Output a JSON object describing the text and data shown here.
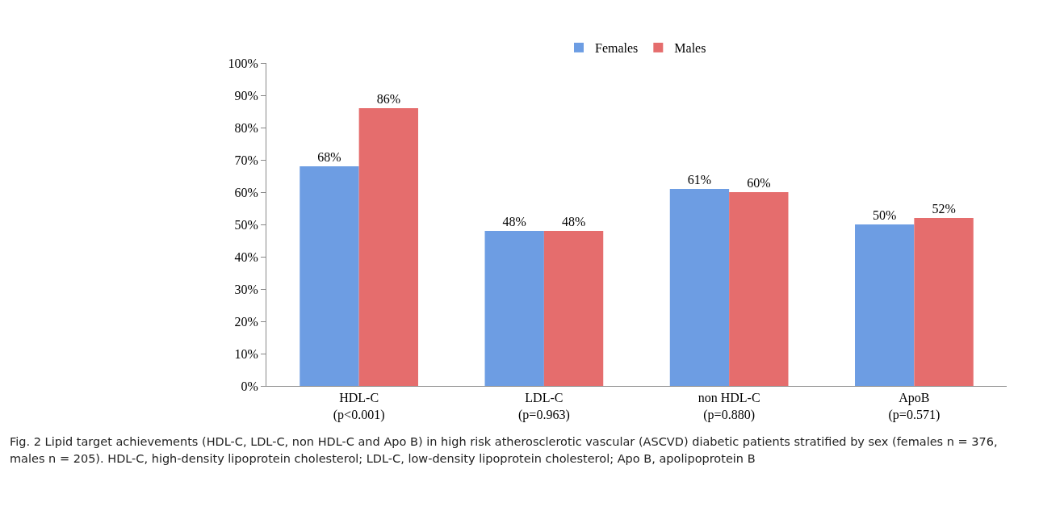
{
  "chart_data": {
    "type": "bar",
    "categories": [
      "HDL-C\n(p<0.001)",
      "LDL-C\n(p=0.963)",
      "non HDL-C\n(p=0.880)",
      "ApoB\n(p=0.571)"
    ],
    "series": [
      {
        "name": "Females",
        "color": "#6d9de3",
        "values": [
          68,
          48,
          61,
          50
        ]
      },
      {
        "name": "Males",
        "color": "#e56d6d",
        "values": [
          86,
          48,
          60,
          52
        ]
      }
    ],
    "ylim": [
      0,
      100
    ],
    "yticks": [
      {
        "value": 0,
        "label": "0%"
      },
      {
        "value": 10,
        "label": "10%"
      },
      {
        "value": 20,
        "label": "20%"
      },
      {
        "value": 30,
        "label": "30%"
      },
      {
        "value": 40,
        "label": "40%"
      },
      {
        "value": 50,
        "label": "50%"
      },
      {
        "value": 60,
        "label": "60%"
      },
      {
        "value": 70,
        "label": "70%"
      },
      {
        "value": 80,
        "label": "80%"
      },
      {
        "value": 90,
        "label": "90%"
      },
      {
        "value": 100,
        "label": "100%"
      }
    ],
    "value_labels": [
      [
        "68%",
        "48%",
        "61%",
        "50%"
      ],
      [
        "86%",
        "48%",
        "60%",
        "52%"
      ]
    ],
    "grid": false,
    "legend": "top",
    "annotations": [
      "Fig. 2 Lipid target achievements (HDL-C, LDL-C, non HDL-C and Apo B) in high risk atherosclerotic vascular (ASCVD) diabetic patients stratified by sex (females n = 376, males n = 205). HDL-C, high-density lipoprotein cholesterol; LDL-C, low-density lipoprotein cholesterol; Apo B, apolipoprotein B"
    ]
  }
}
